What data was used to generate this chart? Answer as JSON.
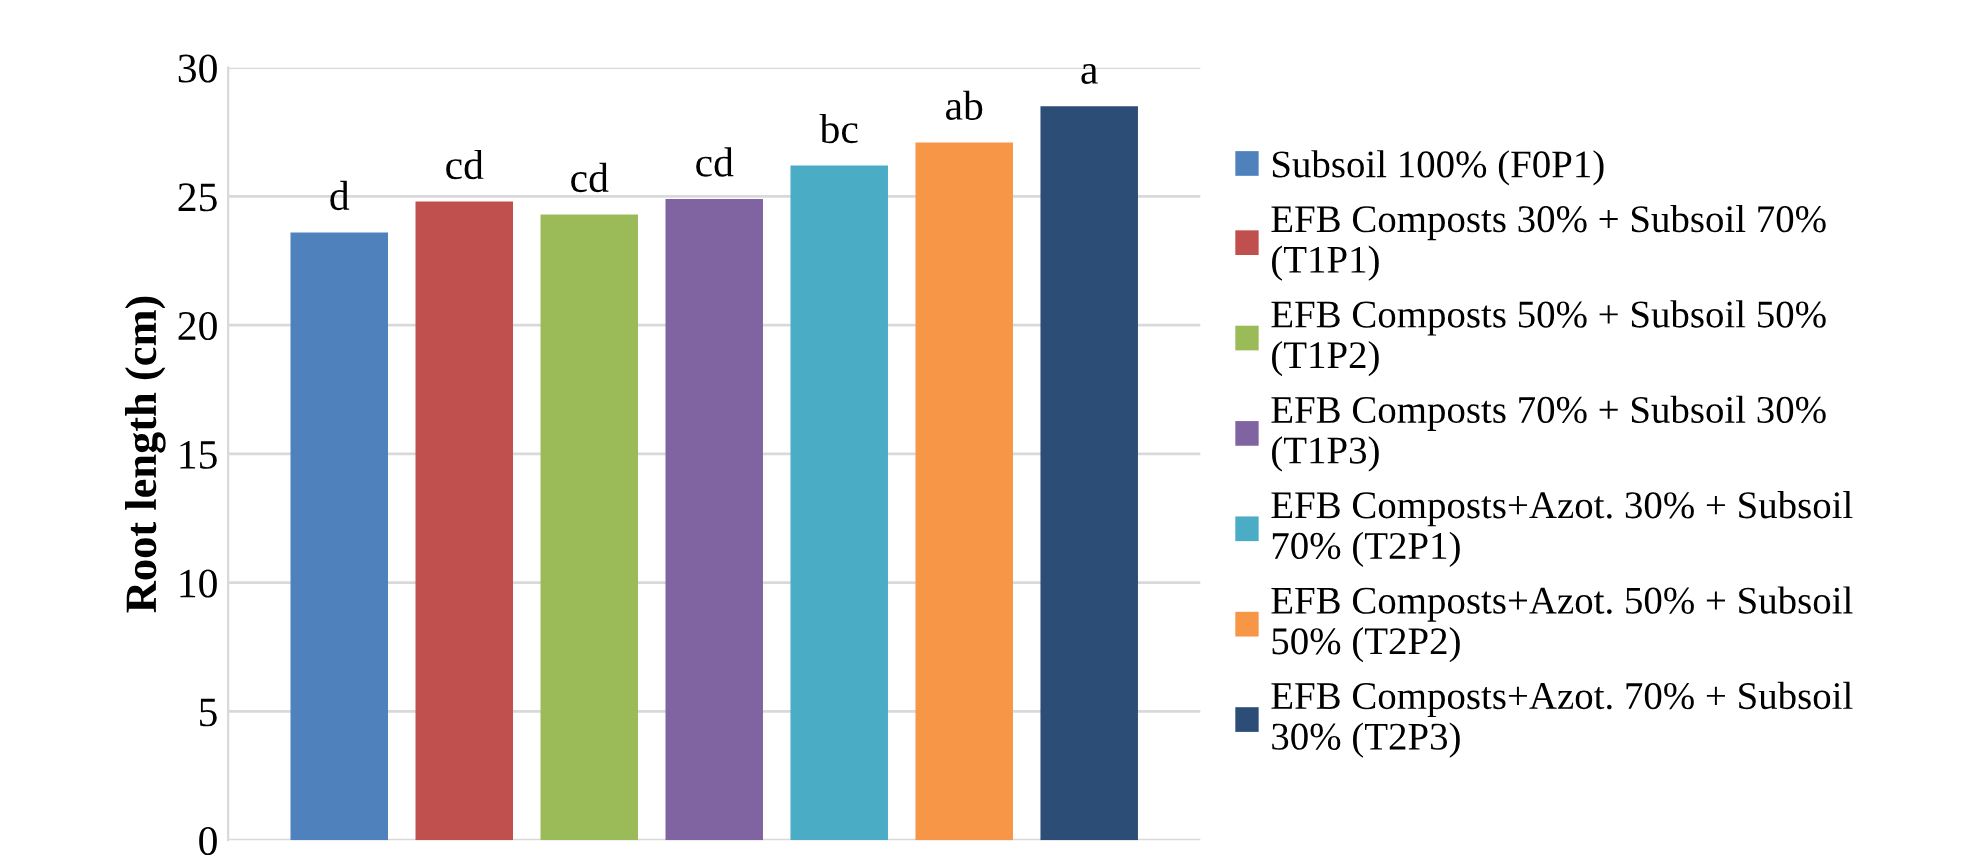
{
  "chart_data": {
    "type": "bar",
    "ylabel": "Root length (cm)",
    "categories": [
      null
    ],
    "series": [
      {
        "name": "Subsoil 100% (F0P1)",
        "color": "#4f81bd",
        "values": [
          23.6
        ],
        "value_labels": [
          "d"
        ]
      },
      {
        "name": "EFB Composts 30% + Subsoil 70% (T1P1)",
        "color": "#c0504d",
        "values": [
          24.8
        ],
        "value_labels": [
          "cd"
        ]
      },
      {
        "name": "EFB Composts 50% + Subsoil 50% (T1P2)",
        "color": "#9bbb59",
        "values": [
          24.3
        ],
        "value_labels": [
          "cd"
        ]
      },
      {
        "name": "EFB Composts 70% + Subsoil 30% (T1P3)",
        "color": "#8064a2",
        "values": [
          24.9
        ],
        "value_labels": [
          "cd"
        ]
      },
      {
        "name": "EFB Composts+Azot. 30% + Subsoil 70% (T2P1)",
        "color": "#4bacc6",
        "values": [
          26.2
        ],
        "value_labels": [
          "bc"
        ]
      },
      {
        "name": "EFB Composts+Azot. 50% + Subsoil 50% (T2P2)",
        "color": "#f79646",
        "values": [
          27.1
        ],
        "value_labels": [
          "ab"
        ]
      },
      {
        "name": "EFB Composts+Azot. 70% + Subsoil 30% (T2P3)",
        "color": "#2c4d75",
        "values": [
          28.5
        ],
        "value_labels": [
          "a"
        ]
      }
    ],
    "ylim": [
      0,
      30
    ],
    "yticks": [
      0,
      5,
      10,
      15,
      20,
      25,
      30
    ],
    "grid": "y",
    "legend": "right"
  }
}
